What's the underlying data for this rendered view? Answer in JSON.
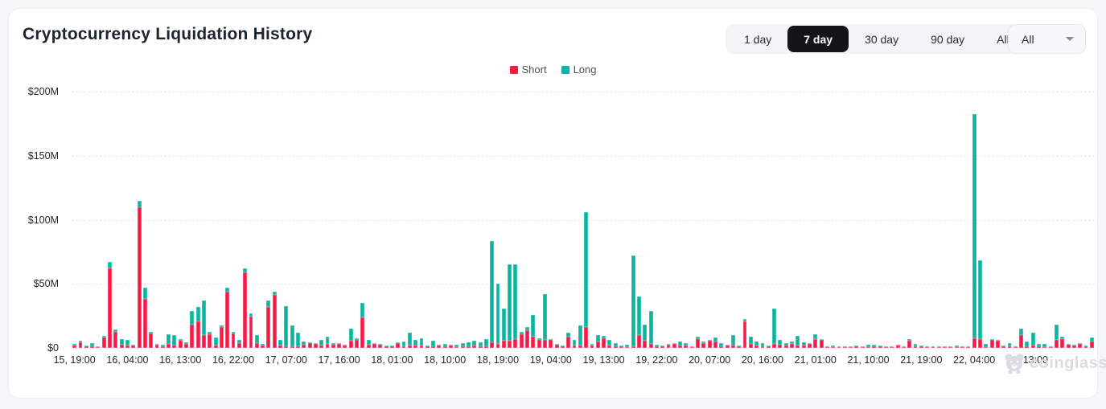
{
  "page_title": "Cryptocurrency Liquidation History",
  "controls": {
    "range_buttons": [
      {
        "label": "1 day",
        "active": false
      },
      {
        "label": "7 day",
        "active": true
      },
      {
        "label": "30 day",
        "active": false
      },
      {
        "label": "90 day",
        "active": false
      },
      {
        "label": "All",
        "active": false
      }
    ],
    "dropdown": {
      "value": "All"
    }
  },
  "legend": [
    {
      "label": "Short",
      "color": "#f71a47"
    },
    {
      "label": "Long",
      "color": "#09b5a0"
    }
  ],
  "watermark": "coinglass",
  "colors": {
    "short": "#f71a47",
    "long": "#09b5a0",
    "active_button_bg": "#131519",
    "watermark": "#d9dce1"
  },
  "chart_data": {
    "type": "bar",
    "stacked": true,
    "title": "Cryptocurrency Liquidation History",
    "unit": "USD millions",
    "ylim": [
      0,
      200
    ],
    "grid": true,
    "legend_position": "top-center",
    "y_tick_labels": [
      "$200M",
      "$150M",
      "$100M",
      "$50M",
      "$0"
    ],
    "x_tick_labels": [
      "15, 19:00",
      "16, 04:00",
      "16, 13:00",
      "16, 22:00",
      "17, 07:00",
      "17, 16:00",
      "18, 01:00",
      "18, 10:00",
      "18, 19:00",
      "19, 04:00",
      "19, 13:00",
      "19, 22:00",
      "20, 07:00",
      "20, 16:00",
      "21, 01:00",
      "21, 10:00",
      "21, 19:00",
      "22, 04:00",
      "22, 13:00"
    ],
    "x_tick_every": 9,
    "series": [
      {
        "name": "Short",
        "color": "#f71a47",
        "values": [
          2.2,
          4.5,
          1.0,
          1.2,
          0.8,
          8.0,
          62,
          12.5,
          2.5,
          2.0,
          1.8,
          110,
          38,
          11.5,
          2.8,
          1.5,
          3.3,
          2.0,
          5.6,
          3.3,
          18,
          21,
          10,
          10.6,
          2.0,
          16,
          44,
          11,
          4.0,
          59,
          24.5,
          4.0,
          2.0,
          32,
          41.5,
          2.0,
          1.5,
          1.5,
          1.5,
          2.5,
          3.8,
          3.0,
          2.0,
          3.0,
          2.8,
          3.2,
          2.0,
          5.5,
          6.0,
          24,
          2.5,
          3.0,
          2.5,
          1.3,
          1.0,
          3.8,
          1.5,
          2.0,
          2.0,
          2.0,
          1.5,
          1.5,
          2.0,
          1.0,
          1.7,
          0.8,
          1.5,
          1.0,
          2.0,
          1.5,
          1.5,
          4.5,
          3.3,
          5.5,
          5.5,
          7.0,
          10.7,
          14,
          8.5,
          6.5,
          6.5,
          6.0,
          2.5,
          1.5,
          8.5,
          2.0,
          2.0,
          16,
          2.0,
          5.0,
          7.5,
          2.0,
          1.0,
          1.0,
          0.5,
          1.0,
          10,
          5.5,
          3.0,
          1.0,
          1.3,
          2.5,
          3.2,
          2.0,
          1.8,
          0.8,
          7.0,
          4.0,
          5.5,
          5.0,
          1.5,
          2.0,
          2.0,
          1.0,
          21,
          3.0,
          2.0,
          1.5,
          1.0,
          3.0,
          2.5,
          2.0,
          3.0,
          2.0,
          1.7,
          3.0,
          7.0,
          6.5,
          0.5,
          0.5,
          0.7,
          0.8,
          0.5,
          1.5,
          0.4,
          0.5,
          1.0,
          1.0,
          0.5,
          0.4,
          1.8,
          0.5,
          5.5,
          1.0,
          1.5,
          0.8,
          0.5,
          0.6,
          0.5,
          0.4,
          0.3,
          0.3,
          0.4,
          7.5,
          7.0,
          0.7,
          6.0,
          5.5,
          1.0,
          1.0,
          0.8,
          10,
          1.3,
          2.0,
          1.0,
          0.5,
          0.6,
          6.0,
          7.0,
          2.3,
          1.7,
          3.0,
          1.2,
          5.0
        ]
      },
      {
        "name": "Long",
        "color": "#09b5a0",
        "values": [
          0.8,
          1.2,
          0.4,
          2.8,
          0.4,
          1.5,
          5,
          2.0,
          4.5,
          4.5,
          0.8,
          5,
          9,
          1.0,
          0.5,
          0.8,
          7.2,
          8.0,
          1.4,
          1.2,
          11,
          11,
          27,
          2.0,
          6.0,
          1.7,
          3.0,
          1.5,
          2.0,
          3.0,
          2.5,
          6.0,
          1.0,
          5.0,
          2.5,
          4.5,
          31,
          16,
          10.5,
          2.5,
          0.8,
          1.0,
          4.5,
          5.5,
          1.0,
          0.8,
          0.6,
          9.5,
          1.5,
          11,
          3.5,
          0.8,
          0.8,
          0.5,
          0.4,
          0.6,
          3.5,
          10,
          4.0,
          5.5,
          0.5,
          4.0,
          0.7,
          2.3,
          0.5,
          1.7,
          2.3,
          3.3,
          3.5,
          3.0,
          5.5,
          79,
          47,
          25,
          60,
          58,
          2.0,
          2.5,
          17,
          1.0,
          35.5,
          1.0,
          0.5,
          0.7,
          3.5,
          4.0,
          15.5,
          90,
          1.0,
          5.0,
          2.0,
          4.5,
          2.5,
          1.0,
          1.7,
          71,
          30,
          12.5,
          26,
          1.5,
          0.4,
          0.8,
          0.8,
          3.0,
          2.0,
          0.4,
          1.5,
          1.0,
          0.5,
          3.0,
          2.3,
          0.5,
          8.0,
          0.5,
          1.5,
          5.5,
          3.0,
          2.3,
          0.5,
          28,
          3.5,
          1.5,
          2.0,
          7.5,
          2.7,
          0.4,
          3.5,
          0.5,
          0.3,
          1.5,
          0.5,
          0.3,
          0.3,
          0.7,
          0.3,
          2.0,
          1.5,
          1.0,
          0.3,
          0.4,
          0.4,
          0.4,
          1.7,
          2.3,
          0.3,
          0.5,
          0.3,
          0.3,
          0.4,
          0.3,
          1.5,
          0.2,
          0.3,
          175,
          61.5,
          2.3,
          0.8,
          0.5,
          0.8,
          2.5,
          0.5,
          5.0,
          4.0,
          10,
          2.0,
          2.3,
          0.4,
          12,
          1.5,
          0.4,
          0.3,
          1.0,
          0.5,
          3.0
        ]
      }
    ]
  }
}
